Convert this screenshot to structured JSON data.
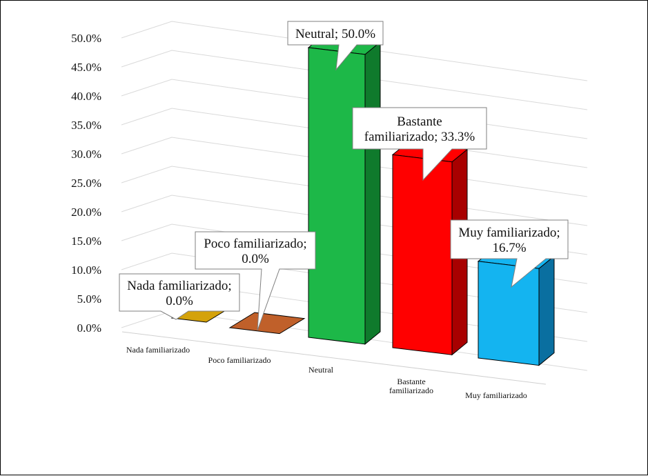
{
  "chart_data": {
    "type": "bar",
    "categories": [
      "Nada familiarizado",
      "Poco familiarizado",
      "Neutral",
      "Bastante familiarizado",
      "Muy familiarizado"
    ],
    "values": [
      0.0,
      0.0,
      50.0,
      33.3,
      16.7
    ],
    "category_label_lines": [
      [
        "Nada familiarizado"
      ],
      [
        "Poco familiarizado"
      ],
      [
        "Neutral"
      ],
      [
        "Bastante",
        "familiarizado"
      ],
      [
        "Muy familiarizado"
      ]
    ],
    "ytick_labels": [
      "0.0%",
      "5.0%",
      "10.0%",
      "15.0%",
      "20.0%",
      "25.0%",
      "30.0%",
      "35.0%",
      "40.0%",
      "45.0%",
      "50.0%"
    ],
    "ylim": [
      0,
      50
    ],
    "grid": true,
    "style": "3d-columns",
    "data_labels": [
      [
        "Nada familiarizado;",
        "0.0%"
      ],
      [
        "Poco familiarizado;",
        "0.0%"
      ],
      [
        "Neutral;  50.0%"
      ],
      [
        "Bastante",
        "familiarizado;  33.3%"
      ],
      [
        "Muy familiarizado;",
        "16.7%"
      ]
    ],
    "colors": [
      "#d4a20a",
      "#c0602a",
      "#1db848",
      "#ff0000",
      "#14b4f0"
    ],
    "side_colors": [
      "#9a7406",
      "#8a4416",
      "#0f7a2c",
      "#a80000",
      "#0a6fa0"
    ]
  }
}
